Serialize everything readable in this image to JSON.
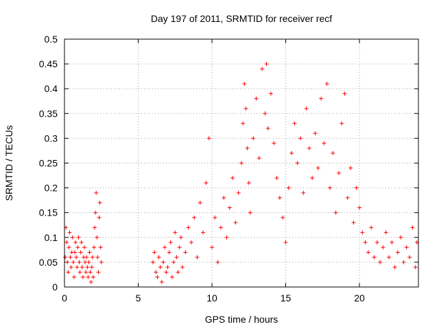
{
  "chart_data": {
    "type": "scatter",
    "title": "Day 197 of 2011, SRMTID for receiver recf",
    "xlabel": "GPS time / hours",
    "ylabel": "SRMTID / TECUs",
    "xlim": [
      0,
      24
    ],
    "ylim": [
      0,
      0.5
    ],
    "xticks": [
      0,
      5,
      10,
      15,
      20
    ],
    "xtick_labels": [
      "0",
      "5",
      "10",
      "15",
      "20"
    ],
    "yticks": [
      0,
      0.05,
      0.1,
      0.15,
      0.2,
      0.25,
      0.3,
      0.35,
      0.4,
      0.45,
      0.5
    ],
    "ytick_labels": [
      "0",
      "0.05",
      "0.1",
      "0.15",
      "0.2",
      "0.25",
      "0.3",
      "0.35",
      "0.4",
      "0.45",
      "0.5"
    ],
    "grid": true,
    "legend": "none",
    "marker": "plus",
    "series_color": "#ff0000",
    "series": [
      {
        "points": [
          [
            0.05,
            0.06
          ],
          [
            0.1,
            0.12
          ],
          [
            0.15,
            0.09
          ],
          [
            0.2,
            0.05
          ],
          [
            0.25,
            0.03
          ],
          [
            0.3,
            0.08
          ],
          [
            0.35,
            0.11
          ],
          [
            0.4,
            0.06
          ],
          [
            0.45,
            0.04
          ],
          [
            0.5,
            0.07
          ],
          [
            0.55,
            0.1
          ],
          [
            0.6,
            0.05
          ],
          [
            0.65,
            0.02
          ],
          [
            0.7,
            0.07
          ],
          [
            0.75,
            0.09
          ],
          [
            0.8,
            0.06
          ],
          [
            0.85,
            0.04
          ],
          [
            0.9,
            0.08
          ],
          [
            0.95,
            0.1
          ],
          [
            1.0,
            0.05
          ],
          [
            1.05,
            0.03
          ],
          [
            1.1,
            0.07
          ],
          [
            1.15,
            0.09
          ],
          [
            1.2,
            0.04
          ],
          [
            1.25,
            0.02
          ],
          [
            1.3,
            0.06
          ],
          [
            1.35,
            0.08
          ],
          [
            1.4,
            0.05
          ],
          [
            1.45,
            0.03
          ],
          [
            1.5,
            0.06
          ],
          [
            1.55,
            0.04
          ],
          [
            1.6,
            0.02
          ],
          [
            1.65,
            0.05
          ],
          [
            1.7,
            0.07
          ],
          [
            1.75,
            0.03
          ],
          [
            1.8,
            0.01
          ],
          [
            1.85,
            0.04
          ],
          [
            1.9,
            0.06
          ],
          [
            1.95,
            0.02
          ],
          [
            2.0,
            0.08
          ],
          [
            2.05,
            0.12
          ],
          [
            2.1,
            0.15
          ],
          [
            2.15,
            0.19
          ],
          [
            2.2,
            0.1
          ],
          [
            2.25,
            0.06
          ],
          [
            2.3,
            0.03
          ],
          [
            2.35,
            0.14
          ],
          [
            2.4,
            0.17
          ],
          [
            2.45,
            0.08
          ],
          [
            2.5,
            0.05
          ],
          [
            6.0,
            0.05
          ],
          [
            6.1,
            0.07
          ],
          [
            6.2,
            0.03
          ],
          [
            6.3,
            0.02
          ],
          [
            6.4,
            0.06
          ],
          [
            6.5,
            0.04
          ],
          [
            6.6,
            0.01
          ],
          [
            6.7,
            0.05
          ],
          [
            6.8,
            0.08
          ],
          [
            6.9,
            0.03
          ],
          [
            7.0,
            0.04
          ],
          [
            7.1,
            0.07
          ],
          [
            7.2,
            0.09
          ],
          [
            7.3,
            0.02
          ],
          [
            7.4,
            0.05
          ],
          [
            7.5,
            0.11
          ],
          [
            7.6,
            0.06
          ],
          [
            7.7,
            0.03
          ],
          [
            7.8,
            0.08
          ],
          [
            7.9,
            0.1
          ],
          [
            8.0,
            0.04
          ],
          [
            8.2,
            0.07
          ],
          [
            8.4,
            0.12
          ],
          [
            8.6,
            0.09
          ],
          [
            8.8,
            0.14
          ],
          [
            9.0,
            0.06
          ],
          [
            9.2,
            0.17
          ],
          [
            9.4,
            0.11
          ],
          [
            9.6,
            0.21
          ],
          [
            9.8,
            0.3
          ],
          [
            10.0,
            0.08
          ],
          [
            10.2,
            0.14
          ],
          [
            10.4,
            0.05
          ],
          [
            10.6,
            0.12
          ],
          [
            10.8,
            0.18
          ],
          [
            11.0,
            0.1
          ],
          [
            11.2,
            0.16
          ],
          [
            11.4,
            0.22
          ],
          [
            11.6,
            0.13
          ],
          [
            11.8,
            0.19
          ],
          [
            12.0,
            0.25
          ],
          [
            12.1,
            0.33
          ],
          [
            12.2,
            0.41
          ],
          [
            12.3,
            0.36
          ],
          [
            12.4,
            0.28
          ],
          [
            12.5,
            0.21
          ],
          [
            12.6,
            0.15
          ],
          [
            12.8,
            0.3
          ],
          [
            13.0,
            0.38
          ],
          [
            13.2,
            0.26
          ],
          [
            13.4,
            0.44
          ],
          [
            13.6,
            0.35
          ],
          [
            13.7,
            0.45
          ],
          [
            13.8,
            0.32
          ],
          [
            14.0,
            0.39
          ],
          [
            14.2,
            0.29
          ],
          [
            14.4,
            0.22
          ],
          [
            14.6,
            0.18
          ],
          [
            14.8,
            0.14
          ],
          [
            15.0,
            0.09
          ],
          [
            15.2,
            0.2
          ],
          [
            15.4,
            0.27
          ],
          [
            15.6,
            0.33
          ],
          [
            15.8,
            0.25
          ],
          [
            16.0,
            0.3
          ],
          [
            16.2,
            0.19
          ],
          [
            16.4,
            0.36
          ],
          [
            16.6,
            0.28
          ],
          [
            16.8,
            0.22
          ],
          [
            17.0,
            0.31
          ],
          [
            17.2,
            0.24
          ],
          [
            17.4,
            0.38
          ],
          [
            17.6,
            0.29
          ],
          [
            17.8,
            0.41
          ],
          [
            18.0,
            0.2
          ],
          [
            18.2,
            0.27
          ],
          [
            18.4,
            0.15
          ],
          [
            18.6,
            0.23
          ],
          [
            18.8,
            0.33
          ],
          [
            19.0,
            0.39
          ],
          [
            19.2,
            0.18
          ],
          [
            19.4,
            0.24
          ],
          [
            19.6,
            0.13
          ],
          [
            19.8,
            0.2
          ],
          [
            20.0,
            0.16
          ],
          [
            20.2,
            0.11
          ],
          [
            20.4,
            0.09
          ],
          [
            20.6,
            0.07
          ],
          [
            20.8,
            0.12
          ],
          [
            21.0,
            0.06
          ],
          [
            21.2,
            0.09
          ],
          [
            21.4,
            0.05
          ],
          [
            21.6,
            0.08
          ],
          [
            21.8,
            0.11
          ],
          [
            22.0,
            0.06
          ],
          [
            22.2,
            0.09
          ],
          [
            22.4,
            0.04
          ],
          [
            22.6,
            0.07
          ],
          [
            22.8,
            0.1
          ],
          [
            23.0,
            0.05
          ],
          [
            23.2,
            0.08
          ],
          [
            23.4,
            0.06
          ],
          [
            23.6,
            0.12
          ],
          [
            23.8,
            0.04
          ],
          [
            23.9,
            0.09
          ]
        ]
      }
    ]
  }
}
